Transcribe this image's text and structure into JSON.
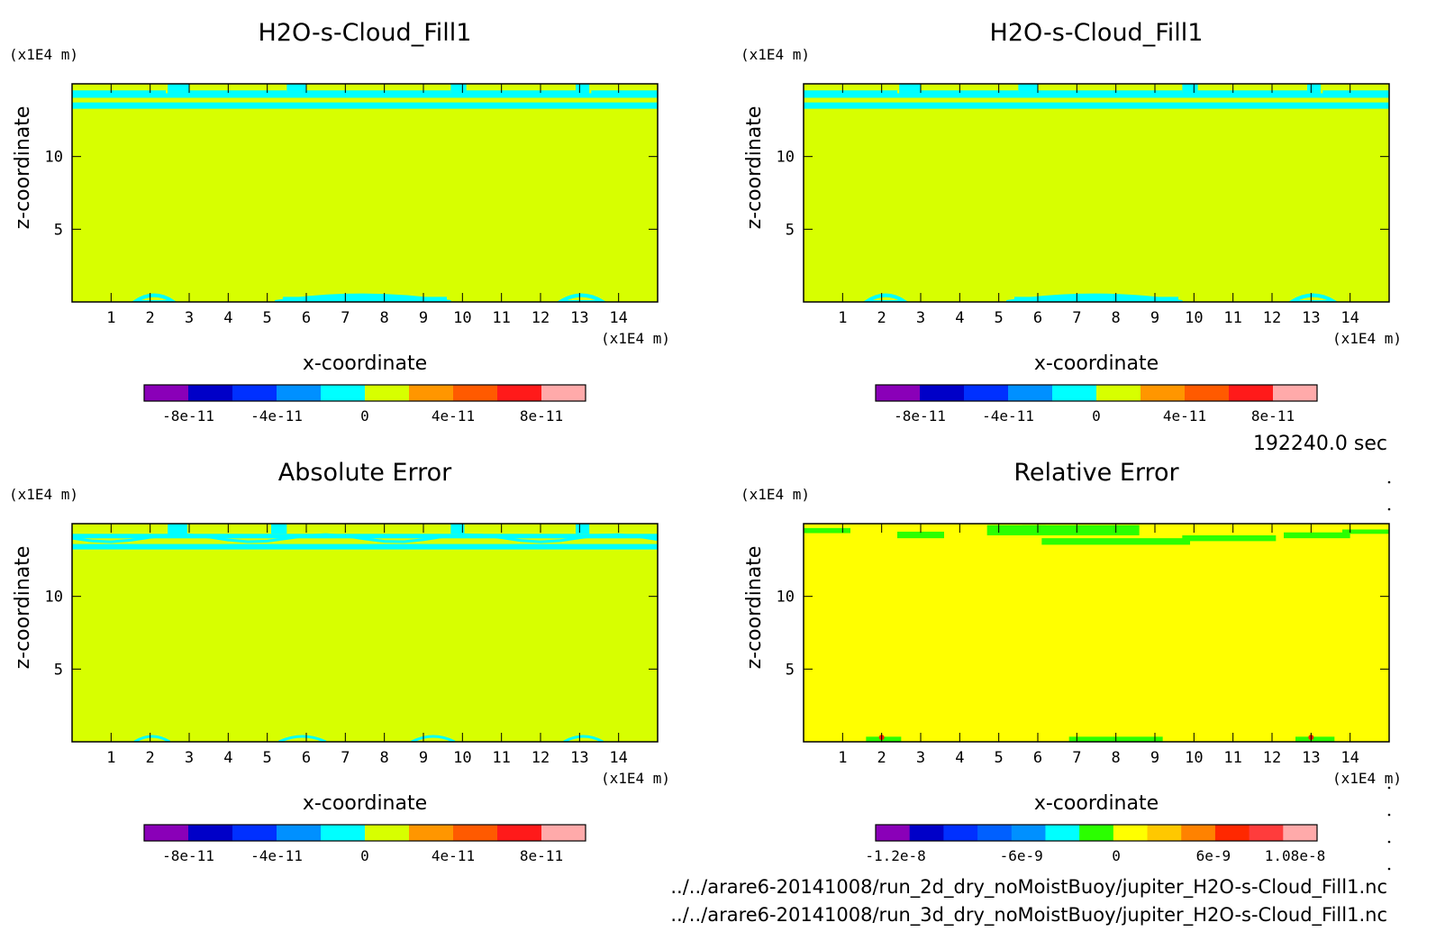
{
  "time_label": "192240.0 sec",
  "file_paths": [
    "../../arare6-20141008/run_2d_dry_noMoistBuoy/jupiter_H2O-s-Cloud_Fill1.nc",
    "../../arare6-20141008/run_3d_dry_noMoistBuoy/jupiter_H2O-s-Cloud_Fill1.nc"
  ],
  "colors": {
    "background_field": "#d7ff00",
    "cyan_band": "#00ffff",
    "relative_field": "#ffff00",
    "relative_green": "#2bff00"
  },
  "chart_data": [
    {
      "type": "heatmap",
      "title": "H2O-s-Cloud_Fill1",
      "xlabel": "x-coordinate",
      "ylabel": "z-coordinate",
      "x_unit": "(x1E4 m)",
      "y_unit": "(x1E4 m)",
      "x_ticks": [
        "1",
        "2",
        "3",
        "4",
        "5",
        "6",
        "7",
        "8",
        "9",
        "10",
        "11",
        "12",
        "13",
        "14"
      ],
      "y_ticks": [
        "5",
        "10"
      ],
      "xlim": [
        0,
        15
      ],
      "ylim": [
        0,
        15
      ],
      "pattern": "absolute",
      "colorbar": {
        "colors": [
          "#8a00b8",
          "#0000c8",
          "#0030ff",
          "#0090ff",
          "#00ffff",
          "#d7ff00",
          "#ff9600",
          "#ff5a00",
          "#ff1a1a",
          "#ffaaaa"
        ],
        "labels": [
          "-8e-11",
          "-4e-11",
          "0",
          "4e-11",
          "8e-11"
        ]
      }
    },
    {
      "type": "heatmap",
      "title": "H2O-s-Cloud_Fill1",
      "xlabel": "x-coordinate",
      "ylabel": "z-coordinate",
      "x_unit": "(x1E4 m)",
      "y_unit": "(x1E4 m)",
      "x_ticks": [
        "1",
        "2",
        "3",
        "4",
        "5",
        "6",
        "7",
        "8",
        "9",
        "10",
        "11",
        "12",
        "13",
        "14"
      ],
      "y_ticks": [
        "5",
        "10"
      ],
      "xlim": [
        0,
        15
      ],
      "ylim": [
        0,
        15
      ],
      "pattern": "absolute",
      "colorbar": {
        "colors": [
          "#8a00b8",
          "#0000c8",
          "#0030ff",
          "#0090ff",
          "#00ffff",
          "#d7ff00",
          "#ff9600",
          "#ff5a00",
          "#ff1a1a",
          "#ffaaaa"
        ],
        "labels": [
          "-8e-11",
          "-4e-11",
          "0",
          "4e-11",
          "8e-11"
        ]
      }
    },
    {
      "type": "heatmap",
      "title": "Absolute Error",
      "xlabel": "x-coordinate",
      "ylabel": "z-coordinate",
      "x_unit": "(x1E4 m)",
      "y_unit": "(x1E4 m)",
      "x_ticks": [
        "1",
        "2",
        "3",
        "4",
        "5",
        "6",
        "7",
        "8",
        "9",
        "10",
        "11",
        "12",
        "13",
        "14"
      ],
      "y_ticks": [
        "5",
        "10"
      ],
      "xlim": [
        0,
        15
      ],
      "ylim": [
        0,
        15
      ],
      "pattern": "error",
      "colorbar": {
        "colors": [
          "#8a00b8",
          "#0000c8",
          "#0030ff",
          "#0090ff",
          "#00ffff",
          "#d7ff00",
          "#ff9600",
          "#ff5a00",
          "#ff1a1a",
          "#ffaaaa"
        ],
        "labels": [
          "-8e-11",
          "-4e-11",
          "0",
          "4e-11",
          "8e-11"
        ]
      }
    },
    {
      "type": "heatmap",
      "title": "Relative Error",
      "xlabel": "x-coordinate",
      "ylabel": "z-coordinate",
      "x_unit": "(x1E4 m)",
      "y_unit": "(x1E4 m)",
      "x_ticks": [
        "1",
        "2",
        "3",
        "4",
        "5",
        "6",
        "7",
        "8",
        "9",
        "10",
        "11",
        "12",
        "13",
        "14"
      ],
      "y_ticks": [
        "5",
        "10"
      ],
      "xlim": [
        0,
        15
      ],
      "ylim": [
        0,
        15
      ],
      "pattern": "relative",
      "colorbar": {
        "colors": [
          "#8a00b8",
          "#0000c8",
          "#0030ff",
          "#0060ff",
          "#0090ff",
          "#00ffff",
          "#2bff00",
          "#ffff00",
          "#ffc800",
          "#ff8200",
          "#ff2800",
          "#ff3c3c",
          "#ffaaaa"
        ],
        "labels": [
          "-1.2e-8",
          "-6e-9",
          "0",
          "6e-9",
          "1.08e-8"
        ]
      }
    }
  ]
}
